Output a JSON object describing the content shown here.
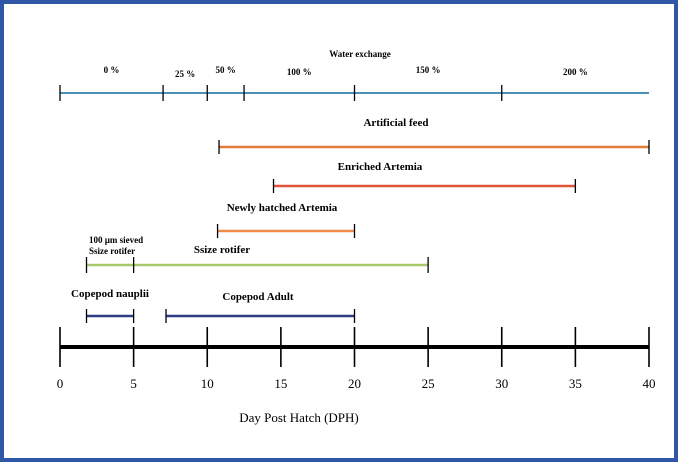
{
  "chart_data": {
    "type": "timeline",
    "xlabel": "Day Post Hatch (DPH)",
    "x_ticks": [
      0,
      5,
      10,
      15,
      20,
      25,
      30,
      35,
      40
    ],
    "xlim": [
      0,
      40
    ],
    "water_exchange": {
      "title": "Water exchange",
      "span": [
        0,
        40
      ],
      "color": "#4a90b8",
      "segments": [
        {
          "label": "0 %",
          "start": 0,
          "end": 7
        },
        {
          "label": "25 %",
          "start": 7,
          "end": 10
        },
        {
          "label": "50 %",
          "start": 10,
          "end": 12.5
        },
        {
          "label": "100 %",
          "start": 12.5,
          "end": 20
        },
        {
          "label": "150 %",
          "start": 20,
          "end": 30
        },
        {
          "label": "200 %",
          "start": 30,
          "end": 40
        }
      ],
      "breaks": [
        0,
        7,
        10,
        12.5,
        20,
        30
      ]
    },
    "feeds": [
      {
        "name": "Artificial feed",
        "start": 10.8,
        "end": 40,
        "color": "#e07b39"
      },
      {
        "name": "Enriched Artemia",
        "start": 14.5,
        "end": 35,
        "color": "#e0533a"
      },
      {
        "name": "Newly hatched Artemia",
        "start": 10.7,
        "end": 20,
        "color": "#f08a48"
      },
      {
        "name": "Ssize rotifer",
        "start": 1.8,
        "end": 25,
        "color": "#a9c86a",
        "sub_label": "100 µm sieved\nSsize rotifer",
        "sub_end": 5
      },
      {
        "name": "Copepod nauplii",
        "start": 1.8,
        "end": 5,
        "color": "#2f3f86"
      },
      {
        "name": "Copepod Adult",
        "start": 7.2,
        "end": 20,
        "color": "#2f3f86"
      }
    ]
  },
  "colors": {
    "frame": "#2f57a6",
    "axis": "#000000"
  }
}
